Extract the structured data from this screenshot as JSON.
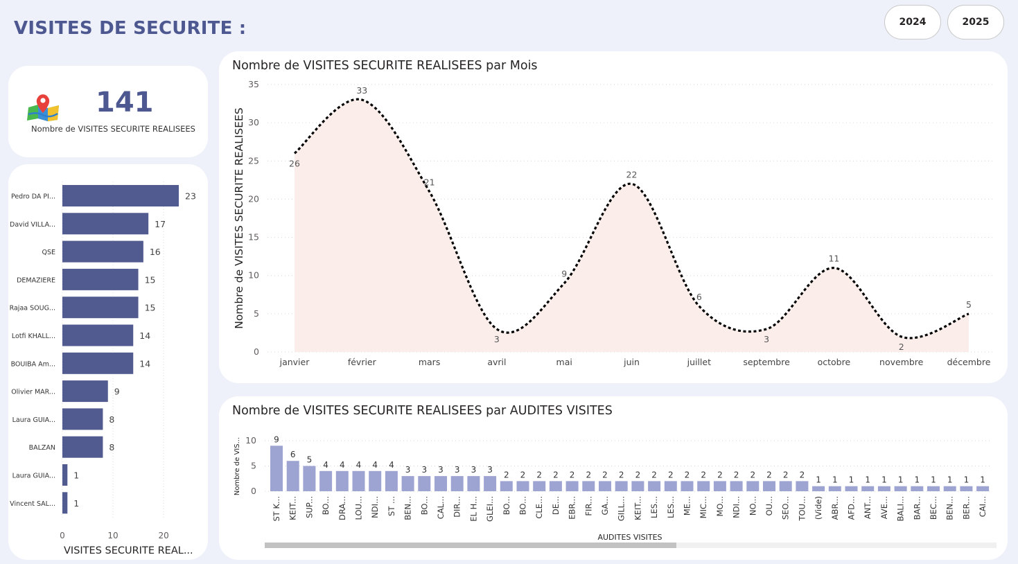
{
  "page": {
    "title": "VISITES DE SECURITE :",
    "years": [
      "2024",
      "2025"
    ]
  },
  "kpi": {
    "value": "141",
    "label": "Nombre de VISITES SECURITE REALISEES",
    "icon": "map-pin-icon"
  },
  "bar_chart": {
    "xlabel": "VISITES SECURITE REAL...",
    "bar_color": "#525b90"
  },
  "line_chart": {
    "title": "Nombre de VISITES SECURITE REALISEES par Mois",
    "ylabel": "Nombre de VISITES SECURITE REALISEES"
  },
  "column_chart": {
    "title": "Nombre de VISITES SECURITE REALISEES par AUDITES VISITES",
    "ylabel": "Nombre de VIS...",
    "xlabel": "AUDITES VISITES",
    "bar_color": "#9ea4d2"
  },
  "chart_data": [
    {
      "type": "bar",
      "orientation": "horizontal",
      "categories": [
        "Pedro DA PI...",
        "David VILLA...",
        "QSE",
        "DEMAZIERE",
        "Rajaa SOUG...",
        "Lotfi KHALL...",
        "BOUIBA Am...",
        "Olivier MAR...",
        "Laura GUIA...",
        "BALZAN",
        "Laura GUIA...",
        "Vincent SAL..."
      ],
      "values": [
        23,
        17,
        16,
        15,
        15,
        14,
        14,
        9,
        8,
        8,
        1,
        1
      ],
      "xlabel": "VISITES SECURITE REAL...",
      "xlim": [
        0,
        23
      ],
      "xticks": [
        0,
        10,
        20
      ],
      "grid": true
    },
    {
      "type": "area",
      "title": "Nombre de VISITES SECURITE REALISEES par Mois",
      "categories": [
        "janvier",
        "février",
        "mars",
        "avril",
        "mai",
        "juin",
        "juillet",
        "septembre",
        "octobre",
        "novembre",
        "décembre"
      ],
      "values": [
        26,
        33,
        21,
        3,
        9,
        22,
        6,
        3,
        11,
        2,
        5
      ],
      "ylabel": "Nombre de VISITES SECURITE REALISEES",
      "ylim": [
        0,
        35
      ],
      "yticks": [
        0,
        5,
        10,
        15,
        20,
        25,
        30,
        35
      ],
      "grid": true
    },
    {
      "type": "bar",
      "title": "Nombre de VISITES SECURITE REALISEES par AUDITES VISITES",
      "categories": [
        "ST K...",
        "KEIT...",
        "SUP...",
        "BO...",
        "DRA...",
        "LOU...",
        "NDI...",
        "ST ...",
        "BEN...",
        "BO...",
        "CAL...",
        "DIR...",
        "EL H...",
        "GLEI...",
        "BO...",
        "BO...",
        "CLE...",
        "DE...",
        "EBR...",
        "FIR...",
        "GA...",
        "GILL...",
        "KEIT...",
        "LES...",
        "LES...",
        "ME...",
        "MIC...",
        "MO...",
        "NDI...",
        "NO...",
        "OU...",
        "SEO...",
        "TOU...",
        "(Vide)",
        "ABR...",
        "AFD...",
        "ANT...",
        "AVE...",
        "BALI...",
        "BAR...",
        "BEC...",
        "BEN...",
        "BER...",
        "CAI..."
      ],
      "values": [
        9,
        6,
        5,
        4,
        4,
        4,
        4,
        4,
        3,
        3,
        3,
        3,
        3,
        3,
        2,
        2,
        2,
        2,
        2,
        2,
        2,
        2,
        2,
        2,
        2,
        2,
        2,
        2,
        2,
        2,
        2,
        2,
        2,
        1,
        1,
        1,
        1,
        1,
        1,
        1,
        1,
        1,
        1,
        1
      ],
      "xlabel": "AUDITES VISITES",
      "ylabel": "Nombre de VIS...",
      "ylim": [
        0,
        10
      ],
      "yticks": [
        0,
        5,
        10
      ],
      "grid": true
    }
  ]
}
